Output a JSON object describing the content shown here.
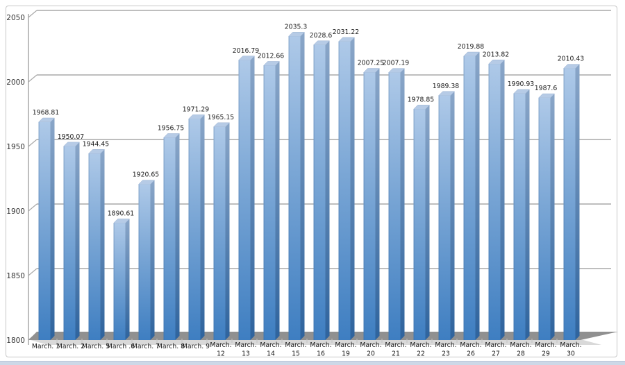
{
  "chart_data": {
    "type": "bar",
    "style": "3d-clustered-column",
    "title": "",
    "xlabel": "",
    "ylabel": "",
    "legend": "none",
    "grid": true,
    "ylim": [
      1800,
      2050
    ],
    "y_ticks": [
      1800,
      1850,
      1900,
      1950,
      2000,
      2050
    ],
    "categories": [
      "March. 1",
      "March. 2",
      "March. 5",
      "March .6",
      "March. 7",
      "March. 8",
      "March. 9",
      "March. 12",
      "March. 13",
      "March. 14",
      "March. 15",
      "March. 16",
      "March. 19",
      "March. 20",
      "March. 21",
      "March. 22",
      "March. 23",
      "March. 26",
      "March. 27",
      "March. 28",
      "March. 29",
      "March. 30"
    ],
    "x_label_lines": [
      [
        "March. 1"
      ],
      [
        "March. 2"
      ],
      [
        "March. 5"
      ],
      [
        "March .6"
      ],
      [
        "March. 7"
      ],
      [
        "March. 8"
      ],
      [
        "March. 9"
      ],
      [
        "March.",
        "12"
      ],
      [
        "March.",
        "13"
      ],
      [
        "March.",
        "14"
      ],
      [
        "March.",
        "15"
      ],
      [
        "March.",
        "16"
      ],
      [
        "March.",
        "19"
      ],
      [
        "March.",
        "20"
      ],
      [
        "March.",
        "21"
      ],
      [
        "March.",
        "22"
      ],
      [
        "March.",
        "23"
      ],
      [
        "March.",
        "26"
      ],
      [
        "March.",
        "27"
      ],
      [
        "March.",
        "28"
      ],
      [
        "March.",
        "29"
      ],
      [
        "March.",
        "30"
      ]
    ],
    "values": [
      1968.81,
      1950.07,
      1944.45,
      1890.61,
      1920.65,
      1956.75,
      1971.29,
      1965.15,
      2016.79,
      2012.66,
      2035.3,
      2028.6,
      2031.22,
      2007.25,
      2007.19,
      1978.85,
      1989.38,
      2019.88,
      2013.82,
      1990.93,
      1987.6,
      2010.43
    ],
    "value_labels": [
      "1968.81",
      "1950.07",
      "1944.45",
      "1890.61",
      "1920.65",
      "1956.75",
      "1971.29",
      "1965.15",
      "2016.79",
      "2012.66",
      "2035.3",
      "2028.6",
      "2031.22",
      "2007.25",
      "2007.19",
      "1978.85",
      "1989.38",
      "2019.88",
      "2013.82",
      "1990.93",
      "1987.6",
      "2010.43"
    ],
    "colors": {
      "bar_front_top": "#aec9e8",
      "bar_front_mid": "#7aa6d5",
      "bar_front_bottom": "#3e7ec1",
      "bar_side_top": "#8aa6c8",
      "bar_side_bottom": "#2e639d",
      "bar_top_face": "#b6cbe6",
      "bar_top_edge": "#9ab1d0",
      "bar_left_edge": "#3c6494",
      "gridline": "#a9a9a9",
      "axis": "#9c9c9c",
      "floor": "#909090",
      "floor_shadow": "#cfcfcf",
      "category_tick": "#c2c2c2",
      "value_label_text": "#1a1a1a",
      "axis_label_text": "#333333",
      "frame_border": "#c6c6c6",
      "bottom_strip": "#cdd8e7",
      "background": "#ffffff"
    }
  }
}
